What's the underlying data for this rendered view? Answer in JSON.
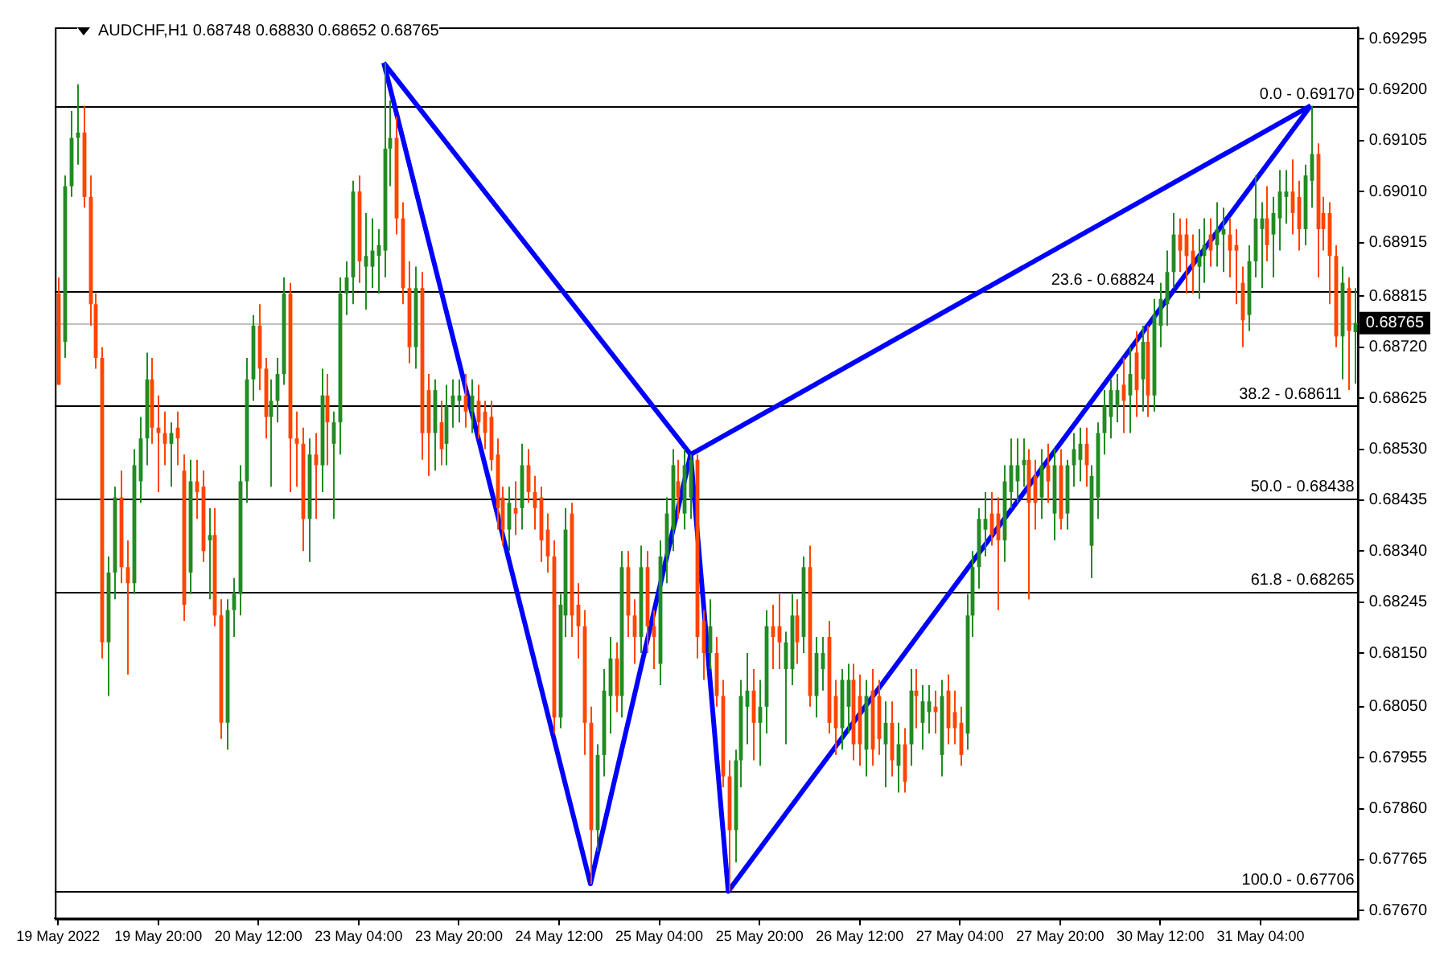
{
  "chart_data": {
    "type": "candlestick",
    "title": "AUDCHF,H1  0.68748 0.68830 0.68652 0.68765",
    "categories": [
      "19 May 2022",
      null,
      null,
      null,
      null,
      null,
      null,
      null,
      null,
      null,
      null,
      null,
      null,
      null,
      null,
      null,
      "19 May 20:00",
      null,
      null,
      null,
      null,
      null,
      null,
      null,
      null,
      null,
      null,
      null,
      null,
      null,
      null,
      null,
      "20 May 12:00",
      null,
      null,
      null,
      null,
      null,
      null,
      null,
      null,
      null,
      null,
      null,
      null,
      null,
      null,
      null,
      "23 May 04:00",
      null,
      null,
      null,
      null,
      null,
      null,
      null,
      null,
      null,
      null,
      null,
      null,
      null,
      null,
      null,
      "23 May 20:00",
      null,
      null,
      null,
      null,
      null,
      null,
      null,
      null,
      null,
      null,
      null,
      null,
      null,
      null,
      null,
      "24 May 12:00",
      null,
      null,
      null,
      null,
      null,
      null,
      null,
      null,
      null,
      null,
      null,
      null,
      null,
      null,
      null,
      "25 May 04:00",
      null,
      null,
      null,
      null,
      null,
      null,
      null,
      null,
      null,
      null,
      null,
      null,
      null,
      null,
      null,
      "25 May 20:00",
      null,
      null,
      null,
      null,
      null,
      null,
      null,
      null,
      null,
      null,
      null,
      null,
      null,
      null,
      null,
      "26 May 12:00",
      null,
      null,
      null,
      null,
      null,
      null,
      null,
      null,
      null,
      null,
      null,
      null,
      null,
      null,
      null,
      "27 May 04:00",
      null,
      null,
      null,
      null,
      null,
      null,
      null,
      null,
      null,
      null,
      null,
      null,
      null,
      null,
      null,
      "27 May 20:00",
      null,
      null,
      null,
      null,
      null,
      null,
      null,
      null,
      null,
      null,
      null,
      null,
      null,
      null,
      null,
      "30 May 12:00",
      null,
      null,
      null,
      null,
      null,
      null,
      null,
      null,
      null,
      null,
      null,
      null,
      null,
      null,
      null,
      "31 May 04:00",
      null,
      null,
      null,
      null,
      null,
      null,
      null,
      null,
      null,
      null,
      null,
      null,
      null,
      null,
      null
    ],
    "ohlc": [
      [
        0.6882,
        0.6885,
        0.6865,
        0.6865
      ],
      [
        0.6873,
        0.6904,
        0.687,
        0.6902
      ],
      [
        0.6902,
        0.6916,
        0.69,
        0.6911
      ],
      [
        0.6911,
        0.6921,
        0.6906,
        0.6912
      ],
      [
        0.6912,
        0.6917,
        0.6898,
        0.69
      ],
      [
        0.69,
        0.6904,
        0.6876,
        0.688
      ],
      [
        0.688,
        0.6882,
        0.6868,
        0.687
      ],
      [
        0.687,
        0.6872,
        0.6814,
        0.6817
      ],
      [
        0.6817,
        0.6833,
        0.6807,
        0.683
      ],
      [
        0.683,
        0.6846,
        0.6825,
        0.6844
      ],
      [
        0.6844,
        0.6849,
        0.6828,
        0.6831
      ],
      [
        0.6831,
        0.6836,
        0.6811,
        0.6828
      ],
      [
        0.6828,
        0.6853,
        0.6826,
        0.685
      ],
      [
        0.6847,
        0.6859,
        0.6843,
        0.6855
      ],
      [
        0.6855,
        0.6871,
        0.685,
        0.6866
      ],
      [
        0.6866,
        0.687,
        0.6854,
        0.6857
      ],
      [
        0.6857,
        0.6863,
        0.6845,
        0.6856
      ],
      [
        0.6856,
        0.686,
        0.685,
        0.6854
      ],
      [
        0.6854,
        0.6858,
        0.6846,
        0.6856
      ],
      [
        0.6857,
        0.686,
        0.685,
        0.6855
      ],
      [
        0.6849,
        0.6852,
        0.6821,
        0.6824
      ],
      [
        0.683,
        0.6851,
        0.6826,
        0.6847
      ],
      [
        0.6847,
        0.6851,
        0.684,
        0.6845
      ],
      [
        0.6846,
        0.6849,
        0.6832,
        0.6834
      ],
      [
        0.6836,
        0.6842,
        0.6825,
        0.6837
      ],
      [
        0.6837,
        0.6842,
        0.682,
        0.6822
      ],
      [
        0.6822,
        0.6825,
        0.6799,
        0.6802
      ],
      [
        0.6802,
        0.6825,
        0.6797,
        0.6823
      ],
      [
        0.6823,
        0.6829,
        0.6818,
        0.6826
      ],
      [
        0.6826,
        0.685,
        0.6822,
        0.6847
      ],
      [
        0.6847,
        0.687,
        0.6843,
        0.6866
      ],
      [
        0.6866,
        0.6878,
        0.6862,
        0.6876
      ],
      [
        0.6876,
        0.688,
        0.6864,
        0.6868
      ],
      [
        0.6868,
        0.687,
        0.6855,
        0.6859
      ],
      [
        0.6859,
        0.6866,
        0.6846,
        0.6862
      ],
      [
        0.6862,
        0.687,
        0.6858,
        0.6867
      ],
      [
        0.6867,
        0.6885,
        0.6865,
        0.6882
      ],
      [
        0.6882,
        0.6884,
        0.6845,
        0.6855
      ],
      [
        0.6855,
        0.686,
        0.6846,
        0.6854
      ],
      [
        0.6854,
        0.6857,
        0.6834,
        0.684
      ],
      [
        0.684,
        0.6855,
        0.6832,
        0.6852
      ],
      [
        0.6852,
        0.6856,
        0.684,
        0.685
      ],
      [
        0.685,
        0.6868,
        0.6845,
        0.6863
      ],
      [
        0.6863,
        0.6867,
        0.685,
        0.6858
      ],
      [
        0.6854,
        0.686,
        0.684,
        0.6858
      ],
      [
        0.6858,
        0.6885,
        0.6852,
        0.6882
      ],
      [
        0.6882,
        0.6888,
        0.6878,
        0.6885
      ],
      [
        0.6885,
        0.6903,
        0.688,
        0.6901
      ],
      [
        0.6901,
        0.6904,
        0.6884,
        0.6888
      ],
      [
        0.6887,
        0.6897,
        0.6879,
        0.6889
      ],
      [
        0.6887,
        0.6896,
        0.6883,
        0.689
      ],
      [
        0.6889,
        0.6894,
        0.6882,
        0.6891
      ],
      [
        0.689,
        0.6925,
        0.6885,
        0.6909
      ],
      [
        0.6909,
        0.6918,
        0.6902,
        0.6911
      ],
      [
        0.6911,
        0.6915,
        0.6893,
        0.6896
      ],
      [
        0.6896,
        0.6899,
        0.688,
        0.6883
      ],
      [
        0.6883,
        0.6888,
        0.6869,
        0.6872
      ],
      [
        0.6872,
        0.6887,
        0.6868,
        0.6883
      ],
      [
        0.6883,
        0.6886,
        0.6851,
        0.6856
      ],
      [
        0.6864,
        0.6867,
        0.6848,
        0.6856
      ],
      [
        0.6856,
        0.6866,
        0.6849,
        0.6864
      ],
      [
        0.6858,
        0.6862,
        0.685,
        0.6853
      ],
      [
        0.6854,
        0.6865,
        0.685,
        0.6861
      ],
      [
        0.6861,
        0.6866,
        0.6857,
        0.6863
      ],
      [
        0.6862,
        0.6866,
        0.6858,
        0.6863
      ],
      [
        0.6863,
        0.6867,
        0.6857,
        0.686
      ],
      [
        0.686,
        0.6866,
        0.6856,
        0.6863
      ],
      [
        0.6862,
        0.6865,
        0.6855,
        0.6858
      ],
      [
        0.686,
        0.6862,
        0.6853,
        0.6856
      ],
      [
        0.6859,
        0.6862,
        0.6849,
        0.6851
      ],
      [
        0.6852,
        0.6855,
        0.6838,
        0.6842
      ],
      [
        0.6844,
        0.6846,
        0.6835,
        0.6838
      ],
      [
        0.6838,
        0.6846,
        0.6834,
        0.6843
      ],
      [
        0.6842,
        0.6847,
        0.6837,
        0.6841
      ],
      [
        0.6842,
        0.6854,
        0.6838,
        0.685
      ],
      [
        0.685,
        0.6853,
        0.6843,
        0.6845
      ],
      [
        0.6845,
        0.6848,
        0.6838,
        0.6842
      ],
      [
        0.6844,
        0.6846,
        0.6832,
        0.6836
      ],
      [
        0.6838,
        0.6841,
        0.683,
        0.6833
      ],
      [
        0.6833,
        0.6836,
        0.68,
        0.6803
      ],
      [
        0.6803,
        0.6826,
        0.6801,
        0.6824
      ],
      [
        0.6822,
        0.6842,
        0.6818,
        0.6838
      ],
      [
        0.6841,
        0.6843,
        0.6818,
        0.6822
      ],
      [
        0.6824,
        0.6828,
        0.6814,
        0.682
      ],
      [
        0.682,
        0.6823,
        0.6796,
        0.6802
      ],
      [
        0.6802,
        0.6805,
        0.6772,
        0.6782
      ],
      [
        0.6782,
        0.6798,
        0.6778,
        0.6796
      ],
      [
        0.6796,
        0.6812,
        0.6792,
        0.6808
      ],
      [
        0.6807,
        0.6818,
        0.68,
        0.6814
      ],
      [
        0.6814,
        0.6817,
        0.6804,
        0.6807
      ],
      [
        0.6807,
        0.6834,
        0.6803,
        0.6831
      ],
      [
        0.6831,
        0.6834,
        0.6818,
        0.6822
      ],
      [
        0.6822,
        0.6825,
        0.6813,
        0.6818
      ],
      [
        0.6818,
        0.6835,
        0.6815,
        0.6831
      ],
      [
        0.6831,
        0.6834,
        0.6815,
        0.682
      ],
      [
        0.682,
        0.6823,
        0.6812,
        0.6818
      ],
      [
        0.6813,
        0.6836,
        0.6809,
        0.6833
      ],
      [
        0.6833,
        0.6844,
        0.6828,
        0.6841
      ],
      [
        0.6838,
        0.6853,
        0.6834,
        0.685
      ],
      [
        0.6847,
        0.6851,
        0.684,
        0.6844
      ],
      [
        0.6841,
        0.6853,
        0.6838,
        0.685
      ],
      [
        0.6844,
        0.6852,
        0.684,
        0.6851
      ],
      [
        0.6851,
        0.6852,
        0.6814,
        0.6818
      ],
      [
        0.6821,
        0.6823,
        0.681,
        0.6815
      ],
      [
        0.6815,
        0.6825,
        0.6812,
        0.682
      ],
      [
        0.6815,
        0.6818,
        0.6805,
        0.6807
      ],
      [
        0.6807,
        0.681,
        0.679,
        0.6792
      ],
      [
        0.6792,
        0.6795,
        0.67706,
        0.6782
      ],
      [
        0.6782,
        0.6797,
        0.6776,
        0.6795
      ],
      [
        0.6795,
        0.681,
        0.679,
        0.6807
      ],
      [
        0.6805,
        0.6815,
        0.6798,
        0.6808
      ],
      [
        0.6808,
        0.6812,
        0.6795,
        0.6802
      ],
      [
        0.6802,
        0.681,
        0.6794,
        0.6805
      ],
      [
        0.6805,
        0.6823,
        0.68,
        0.682
      ],
      [
        0.682,
        0.6824,
        0.6812,
        0.6818
      ],
      [
        0.682,
        0.6826,
        0.6812,
        0.6817
      ],
      [
        0.6812,
        0.6819,
        0.6798,
        0.6817
      ],
      [
        0.6812,
        0.6826,
        0.6809,
        0.6822
      ],
      [
        0.6822,
        0.6825,
        0.6813,
        0.6817
      ],
      [
        0.6818,
        0.6833,
        0.6815,
        0.6831
      ],
      [
        0.6831,
        0.6835,
        0.6805,
        0.6807
      ],
      [
        0.6807,
        0.6818,
        0.6803,
        0.6815
      ],
      [
        0.6812,
        0.6818,
        0.6808,
        0.6815
      ],
      [
        0.6818,
        0.6821,
        0.68,
        0.6802
      ],
      [
        0.6807,
        0.681,
        0.6796,
        0.6801
      ],
      [
        0.6801,
        0.6812,
        0.6797,
        0.681
      ],
      [
        0.6805,
        0.6813,
        0.68,
        0.681
      ],
      [
        0.681,
        0.6813,
        0.6795,
        0.6798
      ],
      [
        0.6807,
        0.6811,
        0.6794,
        0.6798
      ],
      [
        0.6797,
        0.681,
        0.6792,
        0.6807
      ],
      [
        0.6808,
        0.6812,
        0.6794,
        0.6797
      ],
      [
        0.6807,
        0.681,
        0.6796,
        0.6799
      ],
      [
        0.6798,
        0.6806,
        0.679,
        0.6802
      ],
      [
        0.6802,
        0.6806,
        0.6792,
        0.6795
      ],
      [
        0.6794,
        0.6802,
        0.6789,
        0.6798
      ],
      [
        0.6798,
        0.6801,
        0.6789,
        0.6791
      ],
      [
        0.6798,
        0.6812,
        0.6794,
        0.6808
      ],
      [
        0.6808,
        0.6812,
        0.6801,
        0.6807
      ],
      [
        0.6802,
        0.6809,
        0.6797,
        0.6806
      ],
      [
        0.6804,
        0.6809,
        0.68,
        0.6806
      ],
      [
        0.6805,
        0.6808,
        0.68,
        0.6804
      ],
      [
        0.6796,
        0.681,
        0.6792,
        0.6807
      ],
      [
        0.6808,
        0.6811,
        0.6798,
        0.6801
      ],
      [
        0.6804,
        0.6808,
        0.6798,
        0.6801
      ],
      [
        0.6802,
        0.6805,
        0.6794,
        0.6796
      ],
      [
        0.68,
        0.6826,
        0.6797,
        0.6822
      ],
      [
        0.6822,
        0.6834,
        0.6818,
        0.6831
      ],
      [
        0.6831,
        0.6842,
        0.6827,
        0.684
      ],
      [
        0.6838,
        0.6845,
        0.6833,
        0.684
      ],
      [
        0.6841,
        0.6845,
        0.6835,
        0.6837
      ],
      [
        0.6841,
        0.6844,
        0.6823,
        0.6836
      ],
      [
        0.6836,
        0.685,
        0.6832,
        0.6847
      ],
      [
        0.6845,
        0.6855,
        0.6842,
        0.685
      ],
      [
        0.6847,
        0.6855,
        0.6843,
        0.685
      ],
      [
        0.685,
        0.6855,
        0.6846,
        0.6851
      ],
      [
        0.6851,
        0.6853,
        0.6825,
        0.6843
      ],
      [
        0.6848,
        0.6851,
        0.6838,
        0.6843
      ],
      [
        0.6844,
        0.6853,
        0.684,
        0.685
      ],
      [
        0.685,
        0.6854,
        0.6843,
        0.6847
      ],
      [
        0.6841,
        0.6853,
        0.6836,
        0.685
      ],
      [
        0.685,
        0.6853,
        0.6838,
        0.684
      ],
      [
        0.6841,
        0.6851,
        0.6838,
        0.685
      ],
      [
        0.685,
        0.6856,
        0.6846,
        0.6853
      ],
      [
        0.6851,
        0.6857,
        0.6847,
        0.6854
      ],
      [
        0.6854,
        0.6857,
        0.6846,
        0.685
      ],
      [
        0.6835,
        0.685,
        0.6829,
        0.6848
      ],
      [
        0.6844,
        0.6858,
        0.684,
        0.6856
      ],
      [
        0.6856,
        0.6864,
        0.6852,
        0.6861
      ],
      [
        0.6859,
        0.6866,
        0.6855,
        0.6864
      ],
      [
        0.6861,
        0.6867,
        0.6858,
        0.6864
      ],
      [
        0.6865,
        0.687,
        0.6856,
        0.6862
      ],
      [
        0.6863,
        0.6872,
        0.6856,
        0.6867
      ],
      [
        0.6871,
        0.6875,
        0.6859,
        0.6864
      ],
      [
        0.6866,
        0.6876,
        0.686,
        0.6873
      ],
      [
        0.6873,
        0.6876,
        0.6859,
        0.6863
      ],
      [
        0.6863,
        0.6881,
        0.686,
        0.6878
      ],
      [
        0.6876,
        0.6884,
        0.6872,
        0.6881
      ],
      [
        0.688,
        0.689,
        0.6876,
        0.6886
      ],
      [
        0.6886,
        0.6897,
        0.6883,
        0.6893
      ],
      [
        0.6893,
        0.6896,
        0.6886,
        0.689
      ],
      [
        0.6893,
        0.6896,
        0.6882,
        0.6889
      ],
      [
        0.689,
        0.6893,
        0.6882,
        0.6887
      ],
      [
        0.6887,
        0.6894,
        0.6881,
        0.6889
      ],
      [
        0.6889,
        0.6896,
        0.6884,
        0.6891
      ],
      [
        0.6893,
        0.6896,
        0.6887,
        0.689
      ],
      [
        0.6891,
        0.6899,
        0.6887,
        0.6894
      ],
      [
        0.6893,
        0.6898,
        0.6886,
        0.6894
      ],
      [
        0.6893,
        0.6896,
        0.6885,
        0.689
      ],
      [
        0.6891,
        0.6894,
        0.688,
        0.689
      ],
      [
        0.6884,
        0.6887,
        0.6872,
        0.6877
      ],
      [
        0.6878,
        0.6891,
        0.6875,
        0.6888
      ],
      [
        0.6888,
        0.6904,
        0.6885,
        0.6896
      ],
      [
        0.6894,
        0.6899,
        0.6883,
        0.6896
      ],
      [
        0.6896,
        0.6902,
        0.6888,
        0.6891
      ],
      [
        0.6893,
        0.69,
        0.6885,
        0.6897
      ],
      [
        0.6896,
        0.6905,
        0.689,
        0.6901
      ],
      [
        0.69,
        0.6905,
        0.6895,
        0.6901
      ],
      [
        0.6901,
        0.6907,
        0.6893,
        0.6897
      ],
      [
        0.69,
        0.6903,
        0.689,
        0.6894
      ],
      [
        0.6894,
        0.6906,
        0.6891,
        0.6904
      ],
      [
        0.6903,
        0.6917,
        0.6898,
        0.6908
      ],
      [
        0.6908,
        0.691,
        0.6885,
        0.6894
      ],
      [
        0.6897,
        0.69,
        0.689,
        0.6894
      ],
      [
        0.6897,
        0.6899,
        0.688,
        0.6889
      ],
      [
        0.6889,
        0.6891,
        0.6872,
        0.6874
      ],
      [
        0.6874,
        0.6887,
        0.6866,
        0.6884
      ],
      [
        0.6883,
        0.6885,
        0.6864,
        0.6875
      ],
      [
        0.68748,
        0.6883,
        0.68652,
        0.68765
      ]
    ],
    "colors": [
      "#ff4500",
      "#228b22",
      "#228b22",
      "#228b22",
      "#ff4500",
      "#ff4500",
      "#ff4500",
      "#ff4500",
      "#228b22",
      "#228b22",
      "#ff4500",
      "#ff4500",
      "#228b22",
      "#228b22",
      "#228b22",
      "#ff4500",
      "#ff4500",
      "#ff4500",
      "#228b22",
      "#ff4500",
      "#ff4500",
      "#228b22",
      "#ff4500",
      "#ff4500",
      "#228b22",
      "#ff4500",
      "#ff4500",
      "#228b22",
      "#228b22",
      "#228b22",
      "#228b22",
      "#228b22",
      "#ff4500",
      "#ff4500",
      "#228b22",
      "#228b22",
      "#228b22",
      "#ff4500",
      "#ff4500",
      "#ff4500",
      "#228b22",
      "#ff4500",
      "#228b22",
      "#ff4500",
      "#228b22",
      "#228b22",
      "#228b22",
      "#228b22",
      "#ff4500",
      "#228b22",
      "#228b22",
      "#228b22",
      "#228b22",
      "#228b22",
      "#ff4500",
      "#ff4500",
      "#ff4500",
      "#228b22",
      "#ff4500",
      "#ff4500",
      "#228b22",
      "#ff4500",
      "#228b22",
      "#228b22",
      "#228b22",
      "#ff4500",
      "#228b22",
      "#ff4500",
      "#ff4500",
      "#ff4500",
      "#ff4500",
      "#ff4500",
      "#228b22",
      "#ff4500",
      "#228b22",
      "#ff4500",
      "#ff4500",
      "#ff4500",
      "#ff4500",
      "#ff4500",
      "#228b22",
      "#228b22",
      "#ff4500",
      "#ff4500",
      "#ff4500",
      "#ff4500",
      "#228b22",
      "#228b22",
      "#228b22",
      "#ff4500",
      "#228b22",
      "#ff4500",
      "#ff4500",
      "#228b22",
      "#ff4500",
      "#ff4500",
      "#228b22",
      "#228b22",
      "#228b22",
      "#ff4500",
      "#228b22",
      "#228b22",
      "#ff4500",
      "#ff4500",
      "#228b22",
      "#ff4500",
      "#ff4500",
      "#ff4500",
      "#228b22",
      "#228b22",
      "#228b22",
      "#ff4500",
      "#228b22",
      "#228b22",
      "#ff4500",
      "#ff4500",
      "#228b22",
      "#228b22",
      "#ff4500",
      "#228b22",
      "#ff4500",
      "#228b22",
      "#228b22",
      "#ff4500",
      "#ff4500",
      "#228b22",
      "#228b22",
      "#ff4500",
      "#ff4500",
      "#228b22",
      "#ff4500",
      "#ff4500",
      "#228b22",
      "#ff4500",
      "#228b22",
      "#ff4500",
      "#228b22",
      "#ff4500",
      "#228b22",
      "#228b22",
      "#ff4500",
      "#228b22",
      "#ff4500",
      "#ff4500",
      "#ff4500",
      "#228b22",
      "#228b22",
      "#228b22",
      "#228b22",
      "#ff4500",
      "#ff4500",
      "#228b22",
      "#228b22",
      "#228b22",
      "#228b22",
      "#ff4500",
      "#ff4500",
      "#228b22",
      "#ff4500",
      "#228b22",
      "#ff4500",
      "#228b22",
      "#228b22",
      "#228b22",
      "#ff4500",
      "#228b22",
      "#228b22",
      "#228b22",
      "#228b22",
      "#228b22",
      "#ff4500",
      "#228b22",
      "#ff4500",
      "#228b22",
      "#ff4500",
      "#228b22",
      "#228b22",
      "#228b22",
      "#228b22",
      "#ff4500",
      "#ff4500",
      "#ff4500",
      "#228b22",
      "#228b22",
      "#ff4500",
      "#228b22",
      "#228b22",
      "#ff4500",
      "#ff4500",
      "#ff4500",
      "#228b22",
      "#228b22",
      "#228b22",
      "#ff4500",
      "#228b22",
      "#228b22",
      "#228b22",
      "#ff4500",
      "#ff4500",
      "#228b22",
      "#228b22",
      "#ff4500",
      "#ff4500",
      "#ff4500",
      "#ff4500",
      "#228b22",
      "#ff4500",
      "#228b22"
    ],
    "series": [
      {
        "type": "line",
        "color": "#0000ff",
        "values": [
          null,
          null,
          null,
          null,
          null,
          null,
          null,
          null,
          null,
          null,
          null,
          null,
          null,
          null,
          null,
          null,
          null,
          null,
          null,
          null,
          null,
          null,
          null,
          null,
          null,
          null,
          null,
          null,
          null,
          null,
          null,
          null,
          null,
          null,
          null,
          null,
          null,
          null,
          null,
          null,
          null,
          null,
          null,
          null,
          null,
          null,
          null,
          null,
          null,
          null,
          null,
          null,
          0.6925,
          null,
          null,
          null,
          null,
          null,
          null,
          null,
          null,
          null,
          null,
          null,
          null,
          null,
          null,
          null,
          null,
          null,
          null,
          null,
          null,
          null,
          null,
          null,
          null,
          null,
          null,
          null,
          null,
          null,
          null,
          null,
          null,
          0.6772,
          null,
          null,
          null,
          null,
          null,
          null,
          null,
          null,
          null,
          null,
          null,
          null,
          null,
          null,
          null,
          0.6852,
          null,
          null,
          null,
          null,
          null,
          0.67706,
          null,
          null,
          null,
          null,
          null,
          null,
          null,
          null,
          null,
          null,
          null,
          null,
          null,
          null,
          null,
          null,
          null,
          null,
          null,
          null,
          null,
          null,
          null,
          null,
          null,
          null,
          null,
          null,
          null,
          null,
          null,
          null,
          null,
          null,
          null,
          null,
          null,
          null,
          null,
          null,
          null,
          null,
          null,
          null,
          null,
          null,
          null,
          null,
          null,
          null,
          null,
          null,
          null,
          null,
          null,
          null,
          null,
          null,
          null,
          null,
          null,
          null,
          null,
          null,
          null,
          null,
          null,
          null,
          null,
          null,
          null,
          null,
          null,
          null,
          null,
          null,
          null,
          null,
          null,
          null,
          null,
          null,
          null,
          null,
          null,
          null,
          null,
          null,
          null,
          null,
          null,
          null,
          0.6917,
          null,
          null,
          null,
          null,
          null,
          null,
          null
        ]
      },
      {
        "type": "line",
        "color": "#0000ff",
        "values": [
          null,
          null,
          null,
          null,
          null,
          null,
          null,
          null,
          null,
          null,
          null,
          null,
          null,
          null,
          null,
          null,
          null,
          null,
          null,
          null,
          null,
          null,
          null,
          null,
          null,
          null,
          null,
          null,
          null,
          null,
          null,
          null,
          null,
          null,
          null,
          null,
          null,
          null,
          null,
          null,
          null,
          null,
          null,
          null,
          null,
          null,
          null,
          null,
          null,
          null,
          null,
          null,
          0.6925,
          null,
          null,
          null,
          null,
          null,
          null,
          null,
          null,
          null,
          null,
          null,
          null,
          null,
          null,
          null,
          null,
          null,
          null,
          null,
          null,
          null,
          null,
          null,
          null,
          null,
          null,
          null,
          null,
          null,
          null,
          null,
          null,
          null,
          null,
          null,
          null,
          null,
          null,
          null,
          null,
          null,
          null,
          null,
          null,
          null,
          null,
          null,
          null,
          0.6852,
          null,
          null,
          null,
          null,
          null,
          null,
          null,
          null,
          null,
          null,
          null,
          null,
          null,
          null,
          null,
          null,
          null,
          null,
          null,
          null,
          null,
          null,
          null,
          null,
          null,
          null,
          null,
          null,
          null,
          null,
          null,
          null,
          null,
          null,
          null,
          null,
          null,
          null,
          null,
          null,
          null,
          null,
          null,
          null,
          null,
          null,
          null,
          null,
          null,
          null,
          null,
          null,
          null,
          null,
          null,
          null,
          null,
          null,
          null,
          null,
          null,
          null,
          null,
          null,
          null,
          null,
          null,
          null,
          null,
          null,
          null,
          null,
          null,
          null,
          null,
          null,
          null,
          null,
          null,
          null,
          null,
          null,
          null,
          null,
          null,
          null,
          null,
          null,
          null,
          null,
          null,
          null,
          null,
          null,
          null,
          null,
          null,
          null,
          null,
          null,
          null,
          null,
          null,
          null,
          null,
          null
        ]
      },
      {
        "type": "line",
        "color": "#0000ff",
        "values": [
          null,
          null,
          null,
          null,
          null,
          null,
          null,
          null,
          null,
          null,
          null,
          null,
          null,
          null,
          null,
          null,
          null,
          null,
          null,
          null,
          null,
          null,
          null,
          null,
          null,
          null,
          null,
          null,
          null,
          null,
          null,
          null,
          null,
          null,
          null,
          null,
          null,
          null,
          null,
          null,
          null,
          null,
          null,
          null,
          null,
          null,
          null,
          null,
          null,
          null,
          null,
          null,
          null,
          null,
          null,
          null,
          null,
          null,
          null,
          null,
          null,
          null,
          null,
          null,
          null,
          null,
          null,
          null,
          null,
          null,
          null,
          null,
          null,
          null,
          null,
          null,
          null,
          null,
          null,
          null,
          null,
          null,
          null,
          null,
          null,
          null,
          null,
          null,
          null,
          null,
          null,
          null,
          null,
          null,
          null,
          null,
          null,
          null,
          null,
          null,
          null,
          0.6852,
          null,
          null,
          null,
          null,
          null,
          null,
          null,
          null,
          null,
          null,
          null,
          null,
          null,
          null,
          null,
          null,
          null,
          null,
          null,
          null,
          null,
          null,
          null,
          null,
          null,
          null,
          null,
          null,
          null,
          null,
          null,
          null,
          null,
          null,
          null,
          null,
          null,
          null,
          null,
          null,
          null,
          null,
          null,
          null,
          null,
          null,
          null,
          null,
          null,
          null,
          null,
          null,
          null,
          null,
          null,
          null,
          null,
          null,
          null,
          null,
          null,
          null,
          null,
          null,
          null,
          null,
          null,
          null,
          null,
          null,
          null,
          null,
          null,
          null,
          null,
          null,
          null,
          null,
          null,
          null,
          null,
          null,
          null,
          null,
          null,
          null,
          null,
          null,
          null,
          null,
          null,
          null,
          null,
          null,
          null,
          null,
          null,
          null,
          0.6917,
          null,
          null,
          null,
          null,
          null,
          null,
          null
        ]
      }
    ],
    "ylim": [
      0.67655,
      0.69316
    ],
    "yticks": [
      {
        "value": 0.6767,
        "label": "0.67670"
      },
      0.67765,
      {
        "value": 0.6786,
        "label": "0.67860"
      },
      0.67955,
      {
        "value": 0.6805,
        "label": "0.68050"
      },
      {
        "value": 0.6815,
        "label": "0.68150"
      },
      0.68245,
      {
        "value": 0.6834,
        "label": "0.68340"
      },
      0.68435,
      {
        "value": 0.6853,
        "label": "0.68530"
      },
      0.68625,
      {
        "value": 0.6872,
        "label": "0.68720"
      },
      0.68815,
      0.68915,
      {
        "value": 0.6901,
        "label": "0.69010"
      },
      0.69105,
      {
        "value": 0.692,
        "label": "0.69200"
      },
      0.69295
    ],
    "annotations": [
      {
        "text": "0.0 - 0.69170",
        "y": 0.6917
      },
      {
        "text": "23.6 - 0.68824",
        "y": 0.68824
      },
      {
        "text": "38.2 - 0.68611",
        "y": 0.68611
      },
      {
        "text": "50.0 - 0.68438",
        "y": 0.68438
      },
      {
        "text": "61.8 - 0.68265",
        "y": 0.68265
      },
      {
        "text": "100.0 - 0.67706",
        "y": 0.67706
      }
    ],
    "ref_lines": [
      {
        "axis": "y",
        "value": 0.6917,
        "color": "#000000"
      },
      {
        "axis": "y",
        "value": 0.68824,
        "color": "#000000"
      },
      {
        "axis": "y",
        "value": 0.68611,
        "color": "#000000"
      },
      {
        "axis": "y",
        "value": 0.68438,
        "color": "#000000"
      },
      {
        "axis": "y",
        "value": 0.68265,
        "color": "#000000"
      },
      {
        "axis": "y",
        "value": 0.67706,
        "color": "#000000"
      },
      {
        "axis": "y",
        "value": 0.68765,
        "label": "0.68765",
        "color": "#c0c0c0"
      }
    ],
    "grid": false,
    "legend": false
  }
}
